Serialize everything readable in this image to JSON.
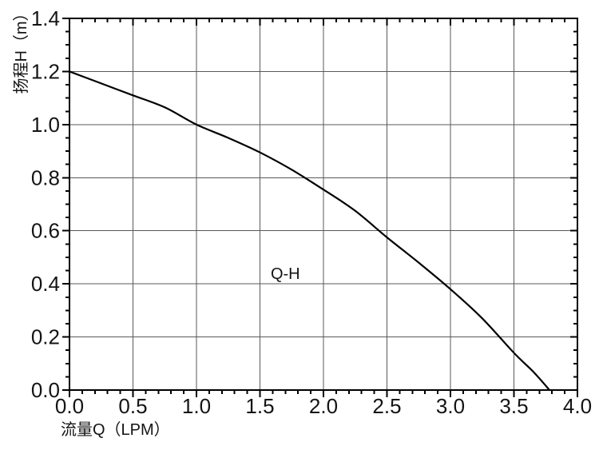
{
  "chart_data": {
    "type": "line",
    "title": "",
    "xlabel": "流量Q（LPM）",
    "ylabel": "扬程H（m）",
    "xlim": [
      0.0,
      4.0
    ],
    "ylim": [
      0.0,
      1.4
    ],
    "x_ticks": [
      0.0,
      0.5,
      1.0,
      1.5,
      2.0,
      2.5,
      3.0,
      3.5,
      4.0
    ],
    "x_tick_labels": [
      "0.0",
      "0.5",
      "1.0",
      "1.5",
      "2.0",
      "2.5",
      "3.0",
      "3.5",
      "4.0"
    ],
    "y_ticks": [
      0.0,
      0.2,
      0.4,
      0.6,
      0.8,
      1.0,
      1.2,
      1.4
    ],
    "y_tick_labels": [
      "0.0",
      "0.2",
      "0.4",
      "0.6",
      "0.8",
      "1.0",
      "1.2",
      "1.4"
    ],
    "x_minor_step": 0.1,
    "y_minor_step": 0.05,
    "grid": "major",
    "legend": "none",
    "annotation": {
      "text": "Q-H",
      "x": 1.7,
      "y": 0.44
    },
    "series": [
      {
        "name": "Q-H",
        "x": [
          0.0,
          0.25,
          0.5,
          0.75,
          1.0,
          1.25,
          1.5,
          1.75,
          2.0,
          2.25,
          2.5,
          2.75,
          3.0,
          3.25,
          3.5,
          3.65,
          3.78
        ],
        "y": [
          1.2,
          1.155,
          1.11,
          1.065,
          1.0,
          0.95,
          0.895,
          0.83,
          0.755,
          0.675,
          0.575,
          0.48,
          0.38,
          0.27,
          0.14,
          0.07,
          0.0
        ]
      }
    ],
    "colors": {
      "curve": "#000000",
      "grid": "#595959",
      "frame": "#000000",
      "text": "#141414"
    }
  }
}
